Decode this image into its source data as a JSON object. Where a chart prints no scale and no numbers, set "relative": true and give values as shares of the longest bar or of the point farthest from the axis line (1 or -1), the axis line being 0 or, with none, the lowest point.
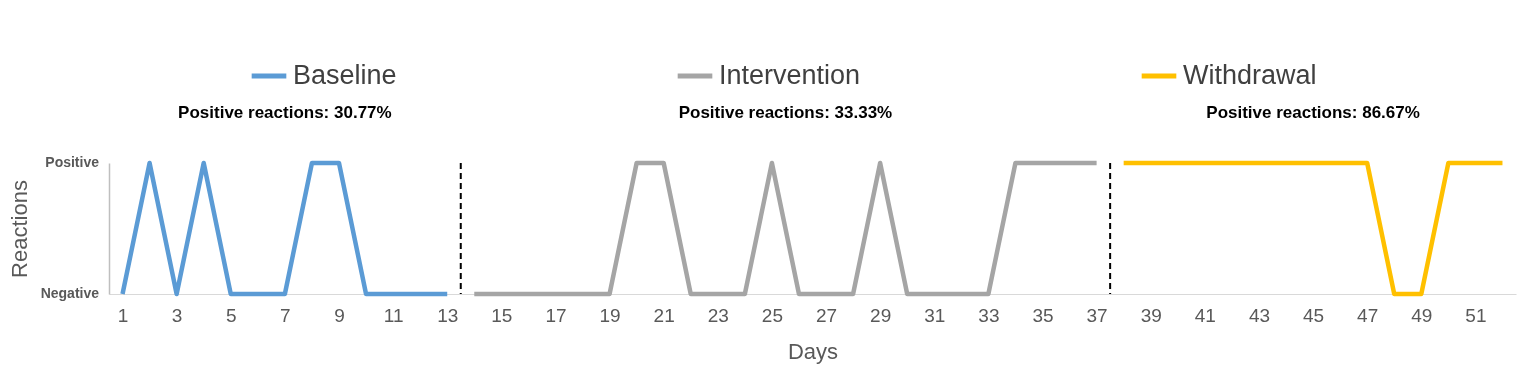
{
  "chart_data": {
    "type": "line",
    "xlabel": "Days",
    "ylabel": "Reactions",
    "relative": true,
    "series": [
      {
        "name": "Baseline",
        "color": "#5b9bd5",
        "x": [
          1,
          2,
          3,
          4,
          5,
          6,
          7,
          8,
          9,
          10,
          11,
          12,
          13
        ],
        "values": [
          0,
          1,
          0,
          1,
          0,
          0,
          0,
          1,
          1,
          0,
          0,
          0,
          0
        ]
      },
      {
        "name": "Intervention",
        "color": "#a5a5a5",
        "x": [
          14,
          15,
          16,
          17,
          18,
          19,
          20,
          21,
          22,
          23,
          24,
          25,
          26,
          27,
          28,
          29,
          30,
          31,
          32,
          33,
          34,
          35,
          36,
          37
        ],
        "values": [
          0,
          0,
          0,
          0,
          0,
          0,
          1,
          1,
          0,
          0,
          0,
          1,
          0,
          0,
          0,
          1,
          0,
          0,
          0,
          0,
          1,
          1,
          1,
          1
        ]
      },
      {
        "name": "Withdrawal",
        "color": "#ffc000",
        "x": [
          38,
          39,
          40,
          41,
          42,
          43,
          44,
          45,
          46,
          47,
          48,
          49,
          50,
          51,
          52
        ],
        "values": [
          1,
          1,
          1,
          1,
          1,
          1,
          1,
          1,
          1,
          1,
          0,
          0,
          1,
          1,
          1
        ]
      }
    ],
    "annotations": [
      "Positive reactions: 30.77%",
      "Positive reactions: 33.33%",
      "Positive reactions: 86.67%",
      "Positive",
      "Negative"
    ],
    "ref_lines": [
      {
        "axis": "x",
        "value": 13.5,
        "color": "#000000",
        "line_style": "dashed"
      },
      {
        "axis": "x",
        "value": 37.5,
        "color": "#000000",
        "line_style": "dashed"
      }
    ],
    "xlim": [
      0.5,
      52.5
    ],
    "xticks": [
      1,
      3,
      5,
      7,
      9,
      11,
      13,
      15,
      17,
      19,
      21,
      23,
      25,
      27,
      29,
      31,
      33,
      35,
      37,
      39,
      41,
      43,
      45,
      47,
      49,
      51
    ],
    "grid": false,
    "legend": "top",
    "marker": "none",
    "line_style": "solid"
  }
}
